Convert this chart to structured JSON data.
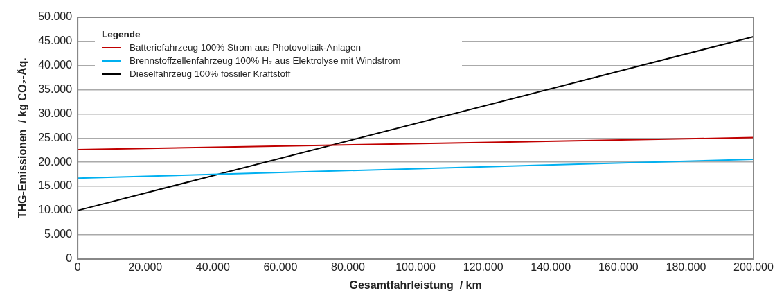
{
  "chart_data": {
    "type": "line",
    "xlabel": "Gesamtfahrleistung  / km",
    "ylabel": "THG-Emissionen  / kg CO₂-Äq.",
    "legend_title": "Legende",
    "legend": "top left",
    "grid": "y",
    "marker": "none",
    "line_style": "solid",
    "x": [
      0,
      200000
    ],
    "series": [
      {
        "name": "Batteriefahrzeug 100% Strom aus Photovoltaik-Anlagen",
        "color": "#c00000",
        "values": [
          22600,
          25100
        ]
      },
      {
        "name": "Brennstoffzellenfahrzeug 100% H₂ aus Elektrolyse mit Windstrom",
        "color": "#00b0f0",
        "values": [
          16700,
          20600
        ]
      },
      {
        "name": "Dieselfahrzeug 100% fossiler Kraftstoff",
        "color": "#000000",
        "values": [
          10000,
          46000
        ]
      }
    ],
    "xlim": [
      0,
      200000
    ],
    "xticks": [
      0,
      {
        "value": 20000,
        "label": "20.000"
      },
      {
        "value": 40000,
        "label": "40.000"
      },
      {
        "value": 60000,
        "label": "60.000"
      },
      {
        "value": 80000,
        "label": "80.000"
      },
      {
        "value": 100000,
        "label": "100.000"
      },
      {
        "value": 120000,
        "label": "120.000"
      },
      {
        "value": 140000,
        "label": "140.000"
      },
      {
        "value": 160000,
        "label": "160.000"
      },
      {
        "value": 180000,
        "label": "180.000"
      },
      {
        "value": 200000,
        "label": "200.000"
      }
    ],
    "ylim": [
      0,
      50000
    ],
    "yticks": [
      0,
      {
        "value": 5000,
        "label": "5.000"
      },
      {
        "value": 10000,
        "label": "10.000"
      },
      {
        "value": 15000,
        "label": "15.000"
      },
      {
        "value": 20000,
        "label": "20.000"
      },
      {
        "value": 25000,
        "label": "25.000"
      },
      {
        "value": 30000,
        "label": "30.000"
      },
      {
        "value": 35000,
        "label": "35.000"
      },
      {
        "value": 40000,
        "label": "40.000"
      },
      {
        "value": 45000,
        "label": "45.000"
      },
      {
        "value": 50000,
        "label": "50.000"
      }
    ]
  }
}
